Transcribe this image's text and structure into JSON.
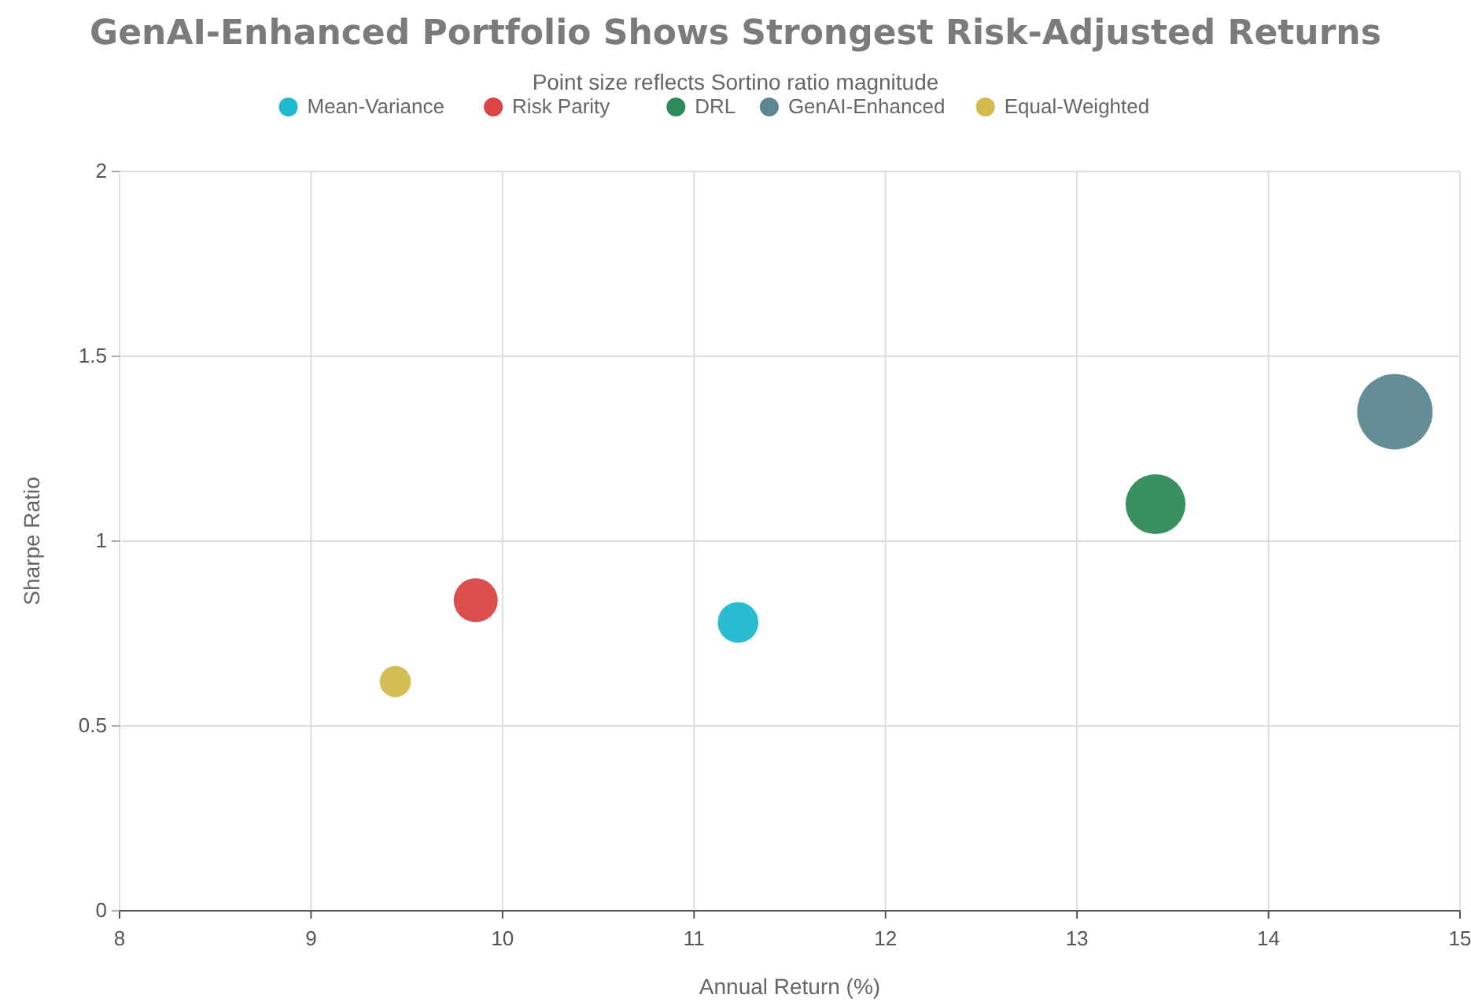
{
  "chart_data": {
    "type": "bubble",
    "title": "GenAI-Enhanced Portfolio Shows Strongest Risk-Adjusted Returns",
    "subtitle": "Point size reflects Sortino ratio magnitude",
    "xlabel": "Annual Return (%)",
    "ylabel": "Sharpe Ratio",
    "series": [
      {
        "name": "Mean-Variance",
        "color": "#1fb8cd",
        "x": [
          11.23
        ],
        "values": [
          0.78
        ],
        "sizes": [
          0.29
        ]
      },
      {
        "name": "Risk Parity",
        "color": "#db4545",
        "x": [
          9.86
        ],
        "values": [
          0.84
        ],
        "sizes": [
          0.34
        ]
      },
      {
        "name": "DRL",
        "color": "#2e8b57",
        "x": [
          13.41
        ],
        "values": [
          1.1
        ],
        "sizes": [
          0.63
        ]
      },
      {
        "name": "GenAI-Enhanced",
        "color": "#5d878f",
        "x": [
          14.66
        ],
        "values": [
          1.35
        ],
        "sizes": [
          1
        ]
      },
      {
        "name": "Equal-Weighted",
        "color": "#d2ba4c",
        "x": [
          9.44
        ],
        "values": [
          0.62
        ],
        "sizes": [
          0.17
        ]
      }
    ],
    "xlim": [
      8,
      15
    ],
    "xticks": [
      8,
      9,
      10,
      11,
      12,
      13,
      14,
      15
    ],
    "ylim": [
      0,
      2
    ],
    "yticks": [
      0,
      0.5,
      1,
      1.5,
      2
    ],
    "grid": true,
    "legend": "top"
  }
}
